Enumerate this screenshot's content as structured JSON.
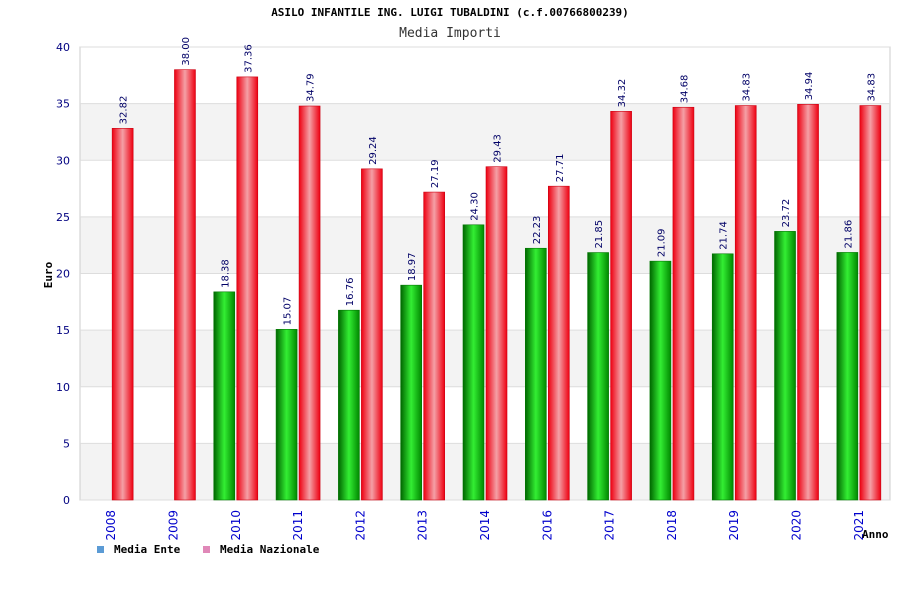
{
  "chart_data": {
    "type": "bar",
    "title": "ASILO INFANTILE ING. LUIGI TUBALDINI (c.f.00766800239)",
    "subtitle": "Media Importi",
    "xlabel": "Anno",
    "ylabel": "Euro",
    "ylim": [
      0,
      40
    ],
    "yticks": [
      0,
      5,
      10,
      15,
      20,
      25,
      30,
      35,
      40
    ],
    "categories": [
      "2008",
      "2009",
      "2010",
      "2011",
      "2012",
      "2013",
      "2014",
      "2016",
      "2017",
      "2018",
      "2019",
      "2020",
      "2021"
    ],
    "series": [
      {
        "name": "Media Ente",
        "legend_color": "#5b9bd5",
        "bar_color": "#00cc00",
        "values": [
          null,
          null,
          18.38,
          15.07,
          16.76,
          18.97,
          24.3,
          22.23,
          21.85,
          21.09,
          21.74,
          23.72,
          21.86
        ],
        "labels": [
          "",
          "",
          "18.38",
          "15.07",
          "16.76",
          "18.97",
          "24.30",
          "22.23",
          "21.85",
          "21.09",
          "21.74",
          "23.72",
          "21.86"
        ]
      },
      {
        "name": "Media Nazionale",
        "legend_color": "#e088b8",
        "bar_color": "#ee1122",
        "values": [
          32.82,
          38.0,
          37.36,
          34.79,
          29.24,
          27.19,
          29.43,
          27.71,
          34.32,
          34.68,
          34.83,
          34.94,
          34.83
        ],
        "labels": [
          "32.82",
          "38.00",
          "37.36",
          "34.79",
          "29.24",
          "27.19",
          "29.43",
          "27.71",
          "34.32",
          "34.68",
          "34.83",
          "34.94",
          "34.83"
        ]
      }
    ],
    "grid": true,
    "legend_position": "bottom-left"
  }
}
